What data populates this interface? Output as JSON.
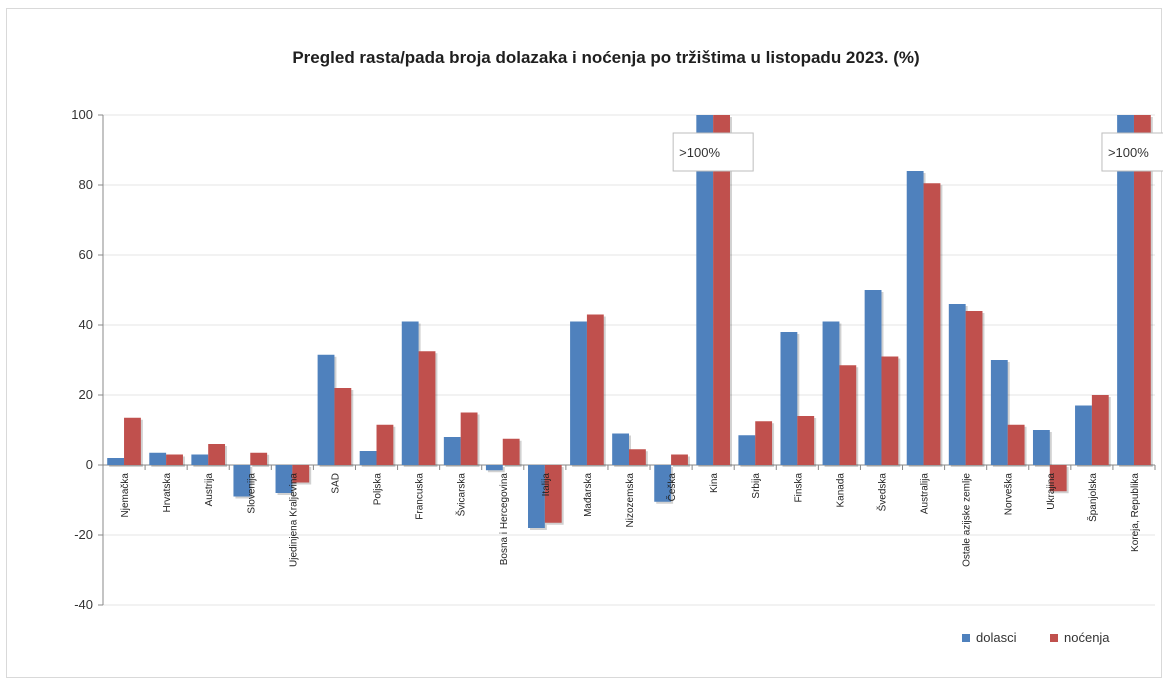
{
  "chart_data": {
    "type": "bar",
    "title": "Pregled rasta/pada broja dolazaka i noćenja po tržištima u listopadu 2023. (%)",
    "xlabel": "",
    "ylabel": "",
    "ylim": [
      -40,
      100
    ],
    "yticks": [
      "100",
      "80",
      "60",
      "40",
      "20",
      "0",
      "-20",
      "-40"
    ],
    "grid": true,
    "legend_position": "bottom-right",
    "categories": [
      "Njemačka",
      "Hrvatska",
      "Austrija",
      "Slovenija",
      "Ujedinjena Kraljevina",
      "SAD",
      "Poljska",
      "Francuska",
      "Švicarska",
      "Bosna i Hercegovina",
      "Italija",
      "Mađarska",
      "Nizozemska",
      "Češka",
      "Kina",
      "Srbija",
      "Finska",
      "Kanada",
      "Švedska",
      "Australija",
      "Ostale azijske zemlje",
      "Norveška",
      "Ukrajina",
      "Španjolska",
      "Koreja, Republika"
    ],
    "series": [
      {
        "name": "dolasci",
        "color": "#4f81bd",
        "values": [
          2,
          3.5,
          3,
          -9,
          -8,
          31.5,
          4,
          41,
          8,
          -1.5,
          -18,
          41,
          9,
          -10.5,
          100,
          8.5,
          38,
          41,
          50,
          84,
          46,
          30,
          10,
          17,
          100
        ]
      },
      {
        "name": "noćenja",
        "color": "#c0504d",
        "values": [
          13.5,
          3,
          6,
          3.5,
          -5,
          22,
          11.5,
          32.5,
          15,
          7.5,
          -16.5,
          43,
          4.5,
          3,
          100,
          12.5,
          14,
          28.5,
          31,
          80.5,
          44,
          11.5,
          -7.5,
          20,
          100
        ]
      }
    ],
    "annotations": [
      {
        "category": "Kina",
        "text": ">100%"
      },
      {
        "category": "Koreja, Republika",
        "text": ">100%"
      }
    ]
  }
}
